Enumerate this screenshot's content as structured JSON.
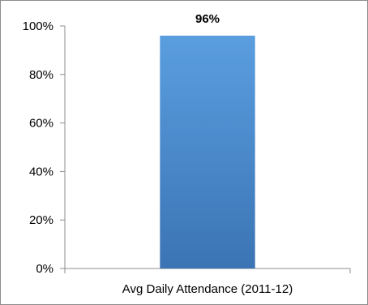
{
  "chart_data": {
    "type": "bar",
    "categories": [
      "Avg Daily Attendance (2011-12)"
    ],
    "values": [
      96
    ],
    "data_labels": [
      "96%"
    ],
    "ylim": [
      0,
      100
    ],
    "yticks": [
      0,
      20,
      40,
      60,
      80,
      100
    ],
    "ytick_labels": [
      "0%",
      "20%",
      "40%",
      "60%",
      "80%",
      "100%"
    ],
    "grid": false,
    "legend": "none",
    "colors": {
      "bar_top": "#5a9ee0",
      "bar_bottom": "#3b74b4",
      "axis": "#8c8c8c",
      "frame": "#8c8c8c"
    }
  }
}
